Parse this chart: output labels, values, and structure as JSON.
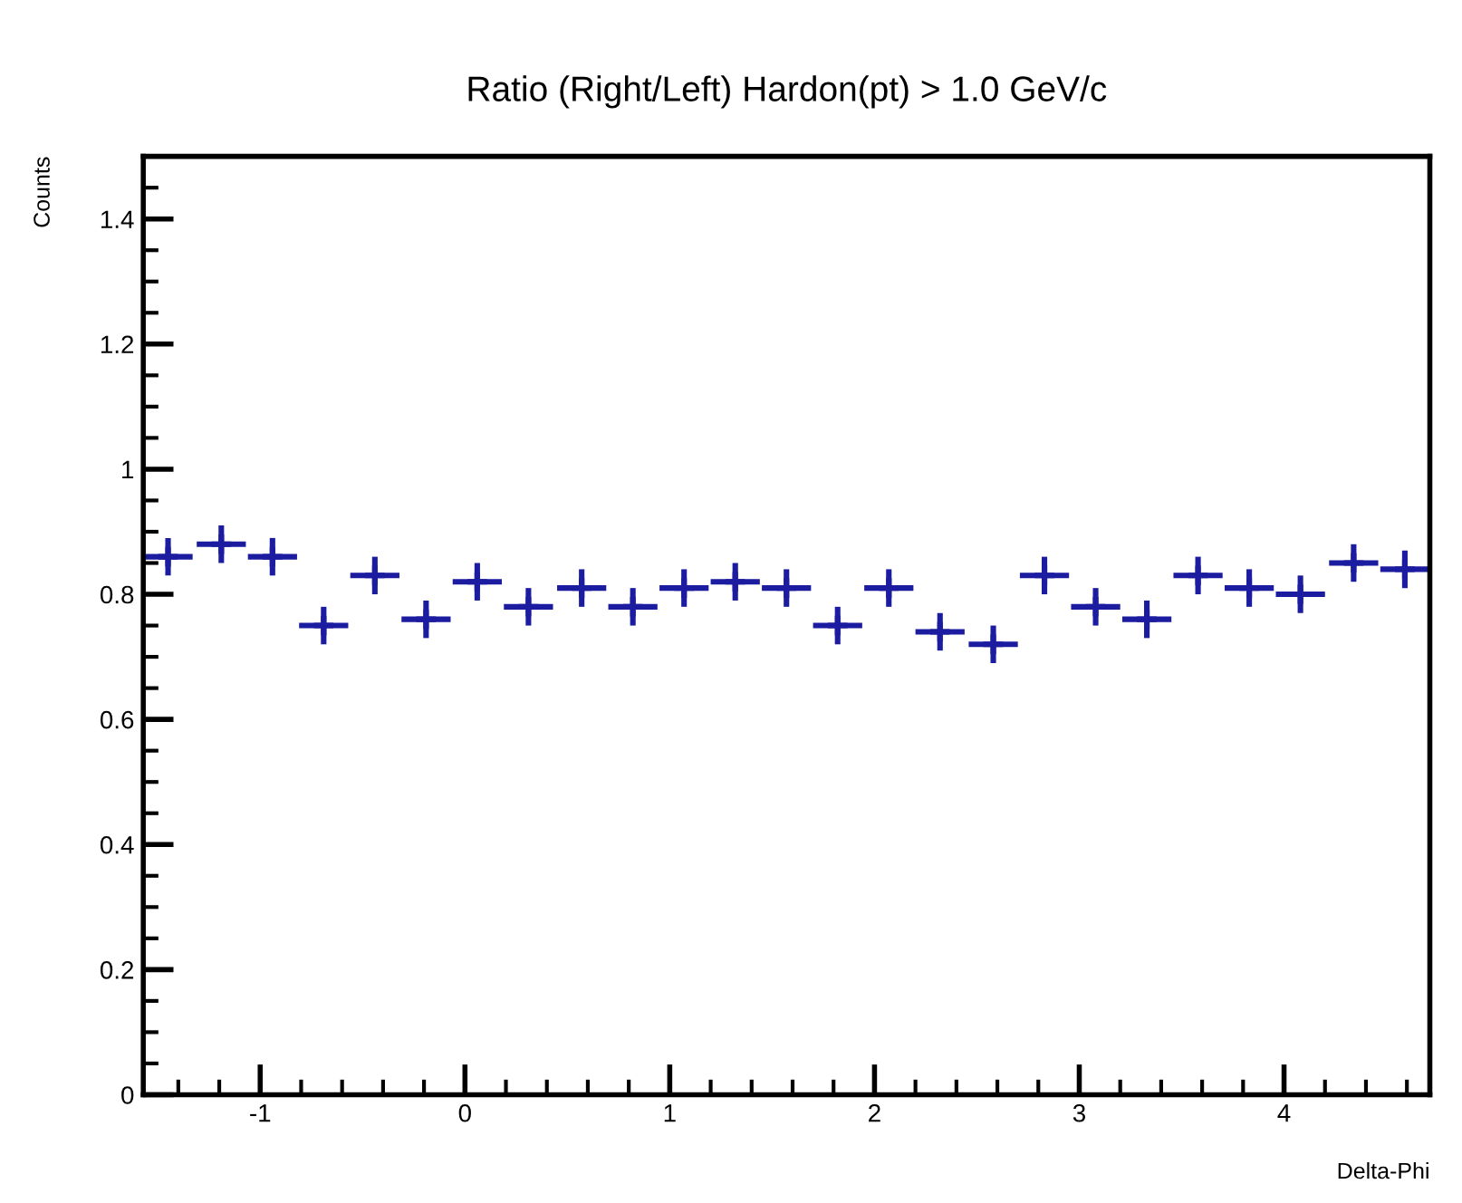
{
  "chart_data": {
    "type": "scatter",
    "title": "Ratio (Right/Left) Hardon(pt) > 1.0 GeV/c",
    "xlabel": "Delta-Phi",
    "ylabel": "Counts",
    "x": [
      -1.45,
      -1.19,
      -0.94,
      -0.69,
      -0.44,
      -0.19,
      0.06,
      0.31,
      0.57,
      0.82,
      1.07,
      1.32,
      1.57,
      1.82,
      2.07,
      2.32,
      2.58,
      2.83,
      3.08,
      3.33,
      3.58,
      3.83,
      4.08,
      4.34,
      4.59
    ],
    "series": [
      {
        "color": "#1c1ca0",
        "values": [
          0.86,
          0.88,
          0.86,
          0.75,
          0.83,
          0.76,
          0.82,
          0.78,
          0.81,
          0.78,
          0.81,
          0.82,
          0.81,
          0.75,
          0.81,
          0.74,
          0.72,
          0.83,
          0.78,
          0.76,
          0.83,
          0.81,
          0.8,
          0.85,
          0.84
        ],
        "errors": [
          0.03,
          0.03,
          0.03,
          0.03,
          0.03,
          0.03,
          0.03,
          0.03,
          0.03,
          0.03,
          0.03,
          0.03,
          0.03,
          0.03,
          0.03,
          0.03,
          0.03,
          0.03,
          0.03,
          0.03,
          0.03,
          0.03,
          0.03,
          0.03,
          0.03
        ],
        "xerrors": [
          0.12,
          0.12,
          0.12,
          0.12,
          0.12,
          0.12,
          0.12,
          0.12,
          0.12,
          0.12,
          0.12,
          0.12,
          0.12,
          0.12,
          0.12,
          0.12,
          0.12,
          0.12,
          0.12,
          0.12,
          0.12,
          0.12,
          0.12,
          0.12,
          0.12
        ]
      }
    ],
    "xlim": [
      -1.571,
      4.712
    ],
    "ylim": [
      0,
      1.5
    ],
    "xticks": [
      -1,
      0,
      1,
      2,
      3,
      4
    ],
    "yticks": [
      0,
      0.2,
      0.4,
      0.6,
      0.8,
      1,
      1.2,
      1.4
    ],
    "grid": false,
    "legend": false,
    "marker": "cross"
  }
}
